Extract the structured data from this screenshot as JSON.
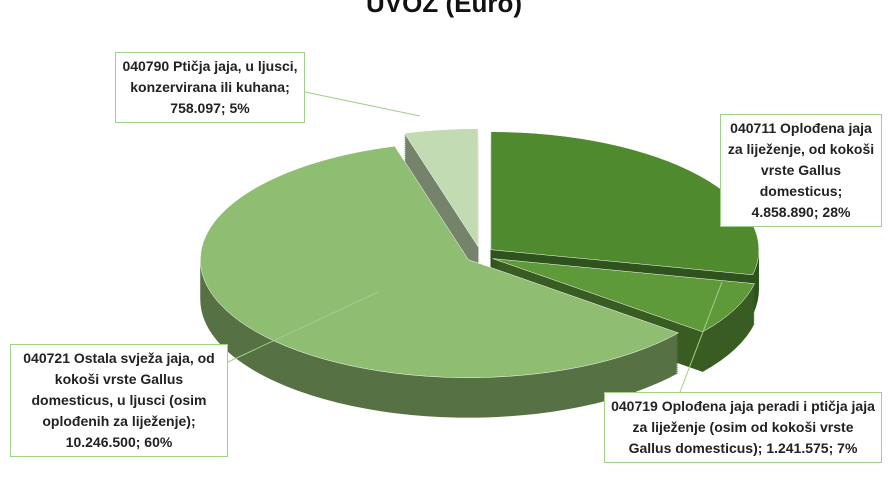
{
  "chart_data": {
    "type": "pie3d",
    "title": "UVOZ (Euro)",
    "categories": [
      "040711 Oplođena jaja za liježenje, od kokoši vrste Gallus domesticus",
      "040719 Oplođena jaja peradi i ptičja jaja za liježenje (osim od kokoši vrste Gallus domesticus)",
      "040721 Ostala svježa jaja, od kokoši vrste Gallus domesticus, u ljusci (osim oplođenih za liježenje)",
      "040790 Ptičja jaja, u ljusci, konzervirana ili kuhana"
    ],
    "values": [
      4858890,
      1241575,
      10246500,
      758097
    ],
    "value_labels": [
      "4.858.890",
      "1.241.575",
      "10.246.500",
      "758.097"
    ],
    "percentages": [
      {
        "value": 28,
        "label": "28%"
      },
      {
        "value": 7,
        "label": "7%"
      },
      {
        "value": 60,
        "label": "60%"
      },
      {
        "value": 5,
        "label": "5%"
      }
    ],
    "label_separator": "; ",
    "colors": [
      "#4f8a2f",
      "#5f9a3a",
      "#8fbd72",
      "#c3dbb2"
    ]
  }
}
